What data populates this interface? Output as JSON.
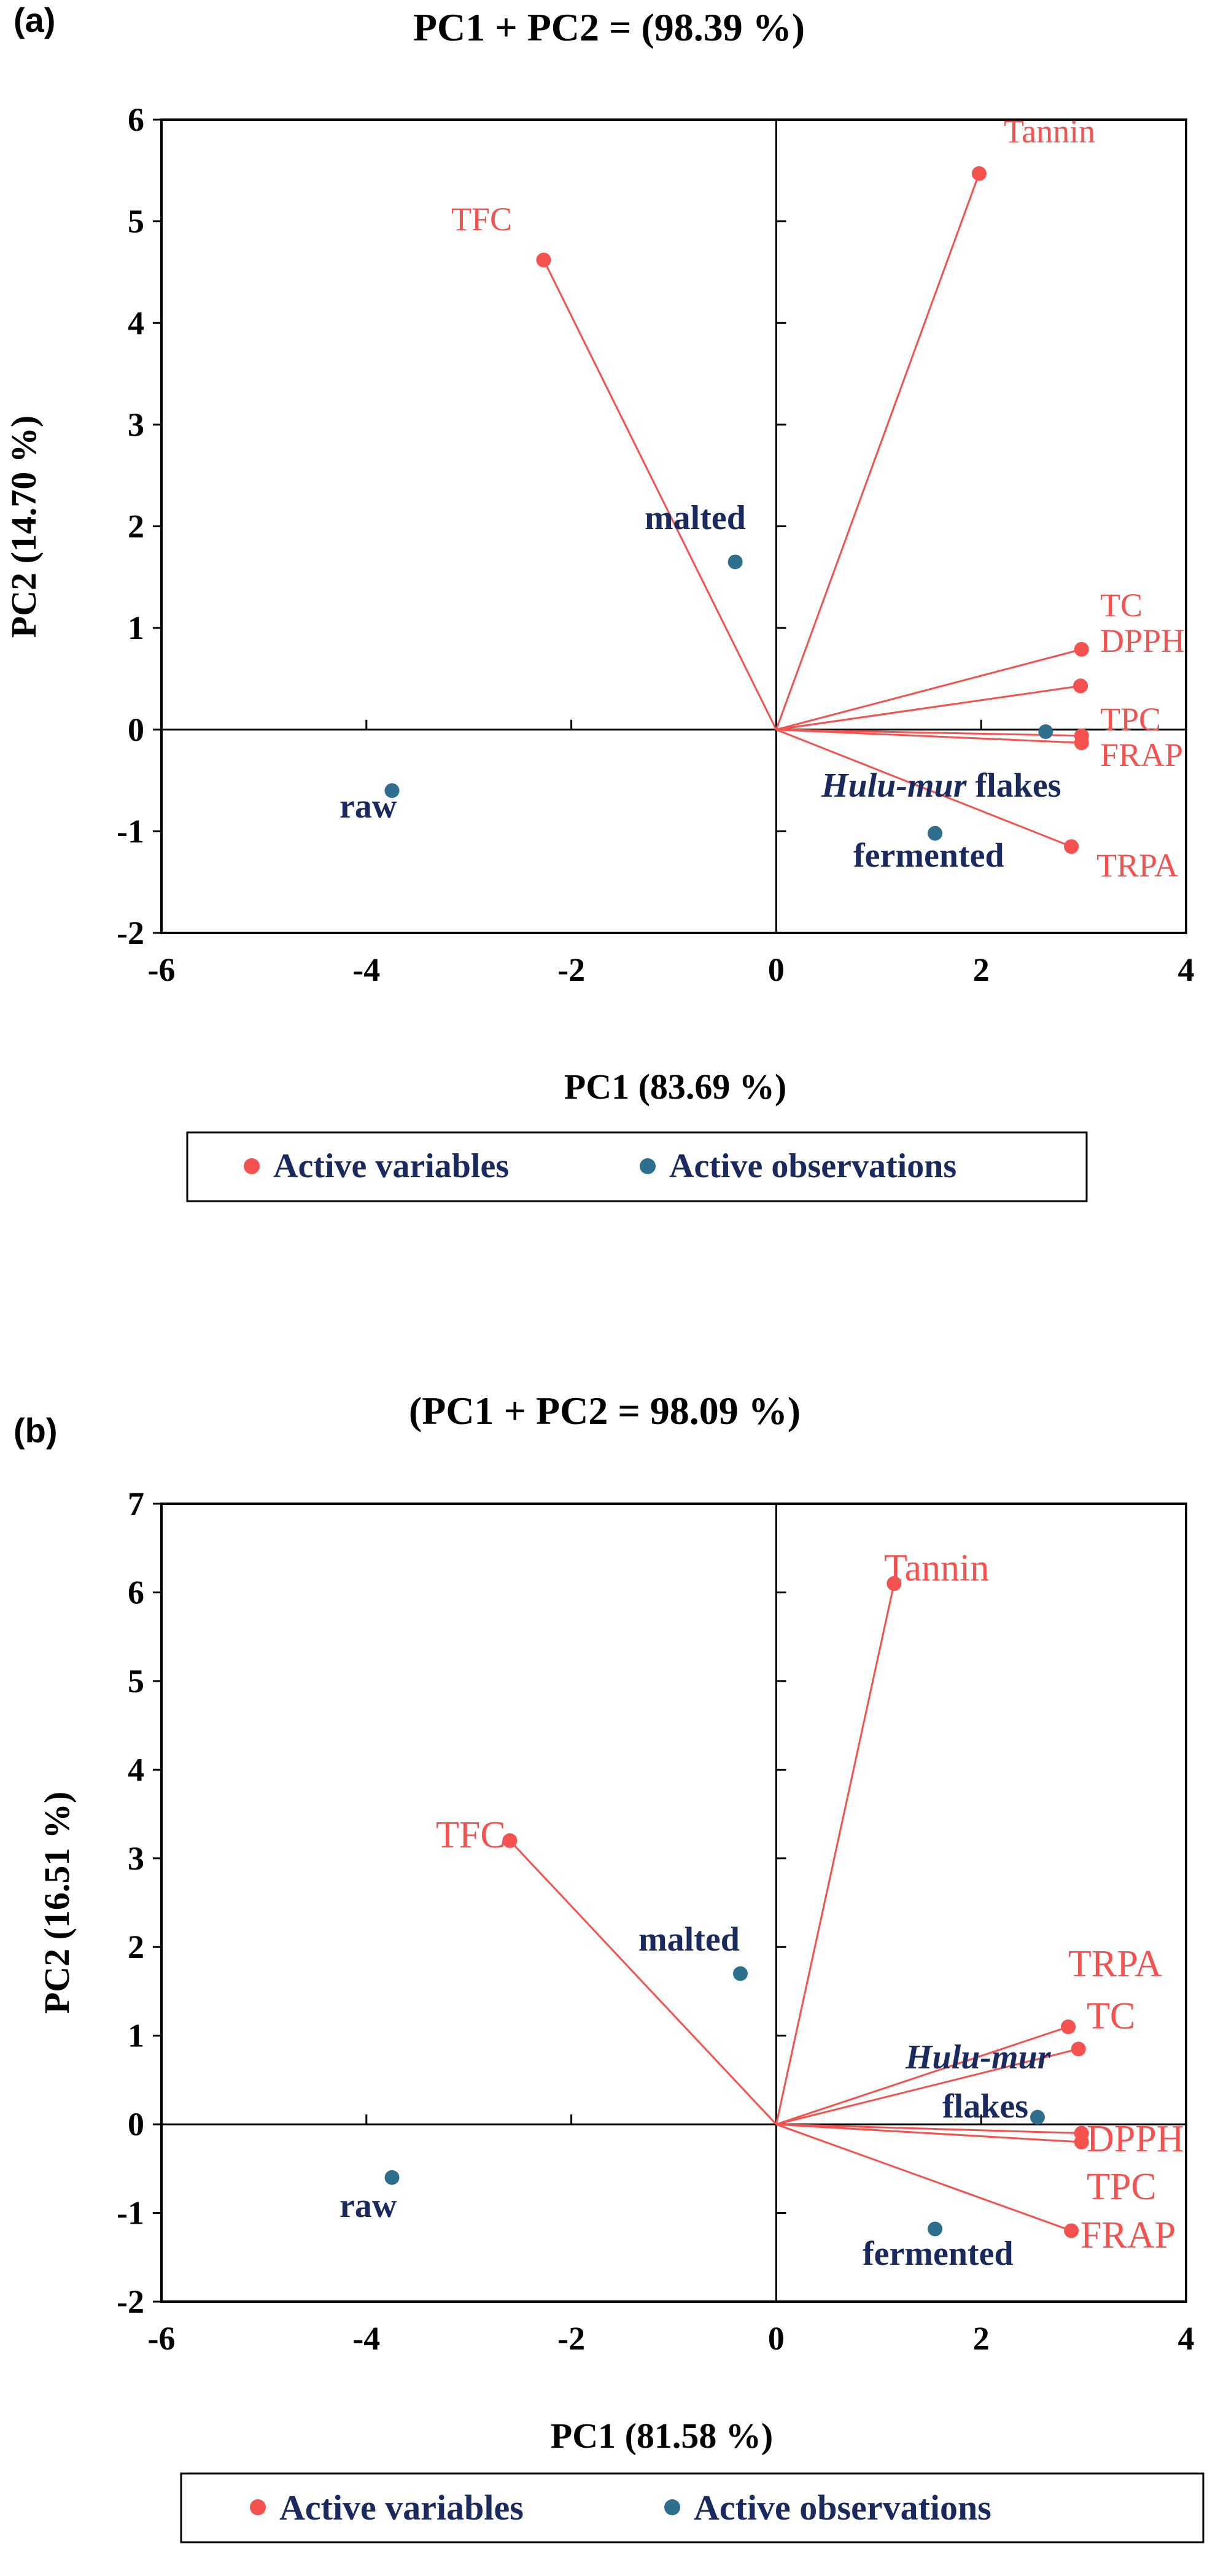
{
  "colors": {
    "variable": "#f4514f",
    "observation": "#2e6f8e",
    "obs_label": "#1a2a5e",
    "axis": "#000000"
  },
  "legend": {
    "active_variables": "Active variables",
    "active_observations": "Active observations"
  },
  "chart_data": [
    {
      "panel": "(a)",
      "type": "scatter",
      "subtype": "PCA biplot",
      "title": "PC1 + PC2 = (98.39 %)",
      "xlabel": "PC1 (83.69 %)",
      "ylabel": "PC2 (14.70 %)",
      "xlim": [
        -6,
        4
      ],
      "ylim": [
        -2,
        6
      ],
      "xticks": [
        -6,
        -4,
        -2,
        0,
        2,
        4
      ],
      "yticks": [
        -2,
        -1,
        0,
        1,
        2,
        3,
        4,
        5,
        6
      ],
      "grid": false,
      "legend_position": "bottom",
      "variables": [
        {
          "name": "Tannin",
          "x": 1.98,
          "y": 5.47
        },
        {
          "name": "TFC",
          "x": -2.27,
          "y": 4.62
        },
        {
          "name": "TC",
          "x": 2.98,
          "y": 0.79
        },
        {
          "name": "DPPH",
          "x": 2.97,
          "y": 0.43
        },
        {
          "name": "TPC",
          "x": 2.98,
          "y": -0.06
        },
        {
          "name": "FRAP",
          "x": 2.98,
          "y": -0.13
        },
        {
          "name": "TRPA",
          "x": 2.88,
          "y": -1.15
        }
      ],
      "observations": [
        {
          "name": "malted",
          "x": -0.4,
          "y": 1.65
        },
        {
          "name": "raw",
          "x": -3.75,
          "y": -0.6
        },
        {
          "name_italic": "Hulu-mur",
          "name_rest": " flakes",
          "x": 2.63,
          "y": -0.02
        },
        {
          "name": "fermented",
          "x": 1.55,
          "y": -1.02
        }
      ]
    },
    {
      "panel": "(b)",
      "type": "scatter",
      "subtype": "PCA biplot",
      "title": "(PC1 + PC2 = 98.09 %)",
      "xlabel": "PC1 (81.58 %)",
      "ylabel": "PC2 (16.51 %)",
      "xlim": [
        -6,
        4
      ],
      "ylim": [
        -2,
        7
      ],
      "xticks": [
        -6,
        -4,
        -2,
        0,
        2,
        4
      ],
      "yticks": [
        -2,
        -1,
        0,
        1,
        2,
        3,
        4,
        5,
        6,
        7
      ],
      "grid": false,
      "legend_position": "bottom",
      "variables": [
        {
          "name": "Tannin",
          "x": 1.15,
          "y": 6.1
        },
        {
          "name": "TFC",
          "x": -2.6,
          "y": 3.2
        },
        {
          "name": "TRPA",
          "x": 2.85,
          "y": 1.1
        },
        {
          "name": "TC",
          "x": 2.95,
          "y": 0.85
        },
        {
          "name": "DPPH",
          "x": 2.98,
          "y": -0.1
        },
        {
          "name": "TPC",
          "x": 2.98,
          "y": -0.2
        },
        {
          "name": "FRAP",
          "x": 2.88,
          "y": -1.2
        }
      ],
      "observations": [
        {
          "name": "malted",
          "x": -0.35,
          "y": 1.7
        },
        {
          "name": "raw",
          "x": -3.75,
          "y": -0.6
        },
        {
          "name_italic": "Hulu-mur",
          "name_rest": "flakes",
          "x": 2.55,
          "y": 0.08
        },
        {
          "name": "fermented",
          "x": 1.55,
          "y": -1.18
        }
      ]
    }
  ]
}
